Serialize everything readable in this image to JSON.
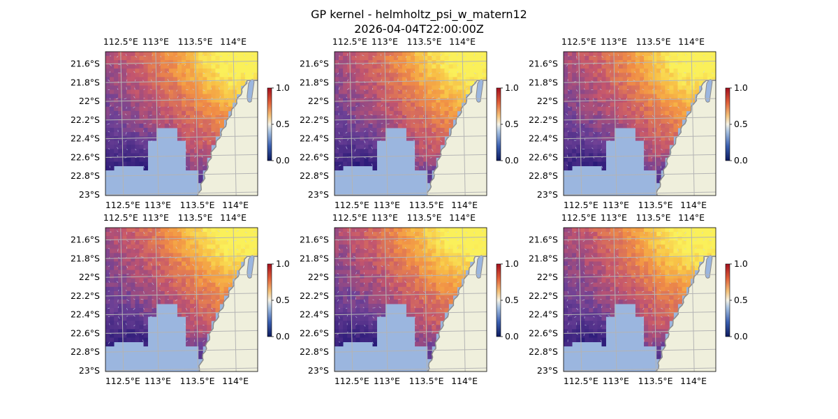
{
  "figure": {
    "title": "GP kernel - helmholtz_psi_w_matern12",
    "subtitle": "2026-04-04T22:00:00Z"
  },
  "colors": {
    "ocean_mask": "#9bb6df",
    "land": "#efefdc",
    "coast": "#8c8c8c",
    "gridline": "#b4b4b4",
    "arrow": "#c8d2e6"
  },
  "chart_data": [
    {
      "type": "heatmap",
      "panel": 1,
      "x_ticks": [
        "112.5°E",
        "113°E",
        "113.5°E",
        "114°E"
      ],
      "y_ticks": [
        "21.6°S",
        "21.8°S",
        "22°S",
        "22.2°S",
        "22.4°S",
        "22.6°S",
        "22.8°S",
        "23°S"
      ],
      "colorbar": {
        "ticks": [
          "0.0",
          "0.5",
          "1.0"
        ],
        "range": [
          0,
          1
        ]
      }
    },
    {
      "type": "heatmap",
      "panel": 2,
      "x_ticks": [
        "112.5°E",
        "113°E",
        "113.5°E",
        "114°E"
      ],
      "y_ticks": [
        "21.6°S",
        "21.8°S",
        "22°S",
        "22.2°S",
        "22.4°S",
        "22.6°S",
        "22.8°S",
        "23°S"
      ],
      "colorbar": {
        "ticks": [
          "0.0",
          "0.5",
          "1.0"
        ],
        "range": [
          0,
          1
        ]
      }
    },
    {
      "type": "heatmap",
      "panel": 3,
      "x_ticks": [
        "112.5°E",
        "113°E",
        "113.5°E",
        "114°E"
      ],
      "y_ticks": [
        "21.6°S",
        "21.8°S",
        "22°S",
        "22.2°S",
        "22.4°S",
        "22.6°S",
        "22.8°S",
        "23°S"
      ],
      "colorbar": {
        "ticks": [
          "0.0",
          "0.5",
          "1.0"
        ],
        "range": [
          0,
          1
        ]
      }
    },
    {
      "type": "heatmap",
      "panel": 4,
      "x_ticks": [
        "112.5°E",
        "113°E",
        "113.5°E",
        "114°E"
      ],
      "y_ticks": [
        "21.6°S",
        "21.8°S",
        "22°S",
        "22.2°S",
        "22.4°S",
        "22.6°S",
        "22.8°S",
        "23°S"
      ],
      "colorbar": {
        "ticks": [
          "0.0",
          "0.5",
          "1.0"
        ],
        "range": [
          0,
          1
        ]
      }
    },
    {
      "type": "heatmap",
      "panel": 5,
      "x_ticks": [
        "112.5°E",
        "113°E",
        "113.5°E",
        "114°E"
      ],
      "y_ticks": [
        "21.6°S",
        "21.8°S",
        "22°S",
        "22.2°S",
        "22.4°S",
        "22.6°S",
        "22.8°S",
        "23°S"
      ],
      "colorbar": {
        "ticks": [
          "0.0",
          "0.5",
          "1.0"
        ],
        "range": [
          0,
          1
        ]
      }
    },
    {
      "type": "heatmap",
      "panel": 6,
      "x_ticks": [
        "112.5°E",
        "113°E",
        "113.5°E",
        "114°E"
      ],
      "y_ticks": [
        "21.6°S",
        "21.8°S",
        "22°S",
        "22.2°S",
        "22.4°S",
        "22.6°S",
        "22.8°S",
        "23°S"
      ],
      "colorbar": {
        "ticks": [
          "0.0",
          "0.5",
          "1.0"
        ],
        "range": [
          0,
          1
        ]
      }
    }
  ]
}
